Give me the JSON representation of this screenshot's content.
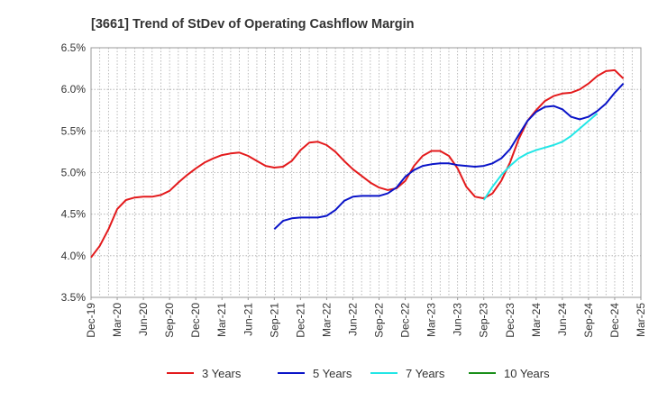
{
  "chart_data": {
    "type": "line",
    "title": "[3661]  Trend of StDev of Operating Cashflow Margin",
    "xlabel": "",
    "ylabel": "",
    "ylim": [
      3.5,
      6.5
    ],
    "yticks": [
      "3.5%",
      "4.0%",
      "4.5%",
      "5.0%",
      "5.5%",
      "6.0%",
      "6.5%"
    ],
    "x_tick_labels": [
      "Dec-19",
      "Mar-20",
      "Jun-20",
      "Sep-20",
      "Dec-20",
      "Mar-21",
      "Jun-21",
      "Sep-21",
      "Dec-21",
      "Mar-22",
      "Jun-22",
      "Sep-22",
      "Dec-22",
      "Mar-23",
      "Jun-23",
      "Sep-23",
      "Dec-23",
      "Mar-24",
      "Jun-24",
      "Sep-24",
      "Dec-24",
      "Mar-25"
    ],
    "x_start": "Dec-19",
    "x_step": "1 month",
    "grid": true,
    "legend_position": "bottom",
    "series": [
      {
        "name": "3 Years",
        "color": "#e31a1c",
        "start_index": 0,
        "values": [
          3.98,
          4.12,
          4.32,
          4.56,
          4.67,
          4.7,
          4.71,
          4.71,
          4.73,
          4.78,
          4.88,
          4.97,
          5.05,
          5.12,
          5.17,
          5.21,
          5.23,
          5.24,
          5.2,
          5.14,
          5.08,
          5.06,
          5.07,
          5.14,
          5.27,
          5.36,
          5.37,
          5.33,
          5.25,
          5.14,
          5.04,
          4.96,
          4.88,
          4.82,
          4.79,
          4.81,
          4.9,
          5.08,
          5.2,
          5.26,
          5.26,
          5.2,
          5.05,
          4.83,
          4.71,
          4.69,
          4.75,
          4.9,
          5.12,
          5.4,
          5.62,
          5.75,
          5.86,
          5.92,
          5.95,
          5.96,
          6.0,
          6.07,
          6.16,
          6.22,
          6.23,
          6.13
        ]
      },
      {
        "name": "5 Years",
        "color": "#0a14c8",
        "start_index": 21,
        "values": [
          4.32,
          4.42,
          4.45,
          4.46,
          4.46,
          4.46,
          4.48,
          4.55,
          4.66,
          4.71,
          4.72,
          4.72,
          4.72,
          4.75,
          4.82,
          4.95,
          5.03,
          5.08,
          5.1,
          5.11,
          5.11,
          5.09,
          5.08,
          5.07,
          5.08,
          5.11,
          5.17,
          5.28,
          5.45,
          5.62,
          5.73,
          5.79,
          5.8,
          5.76,
          5.67,
          5.64,
          5.67,
          5.74,
          5.83,
          5.96,
          6.07
        ]
      },
      {
        "name": "7 Years",
        "color": "#22e6e6",
        "start_index": 45,
        "values": [
          4.67,
          4.83,
          4.97,
          5.08,
          5.17,
          5.23,
          5.27,
          5.3,
          5.33,
          5.37,
          5.44,
          5.53,
          5.62,
          5.71
        ]
      },
      {
        "name": "10 Years",
        "color": "#1a8f1a",
        "start_index": 0,
        "values": []
      }
    ]
  }
}
